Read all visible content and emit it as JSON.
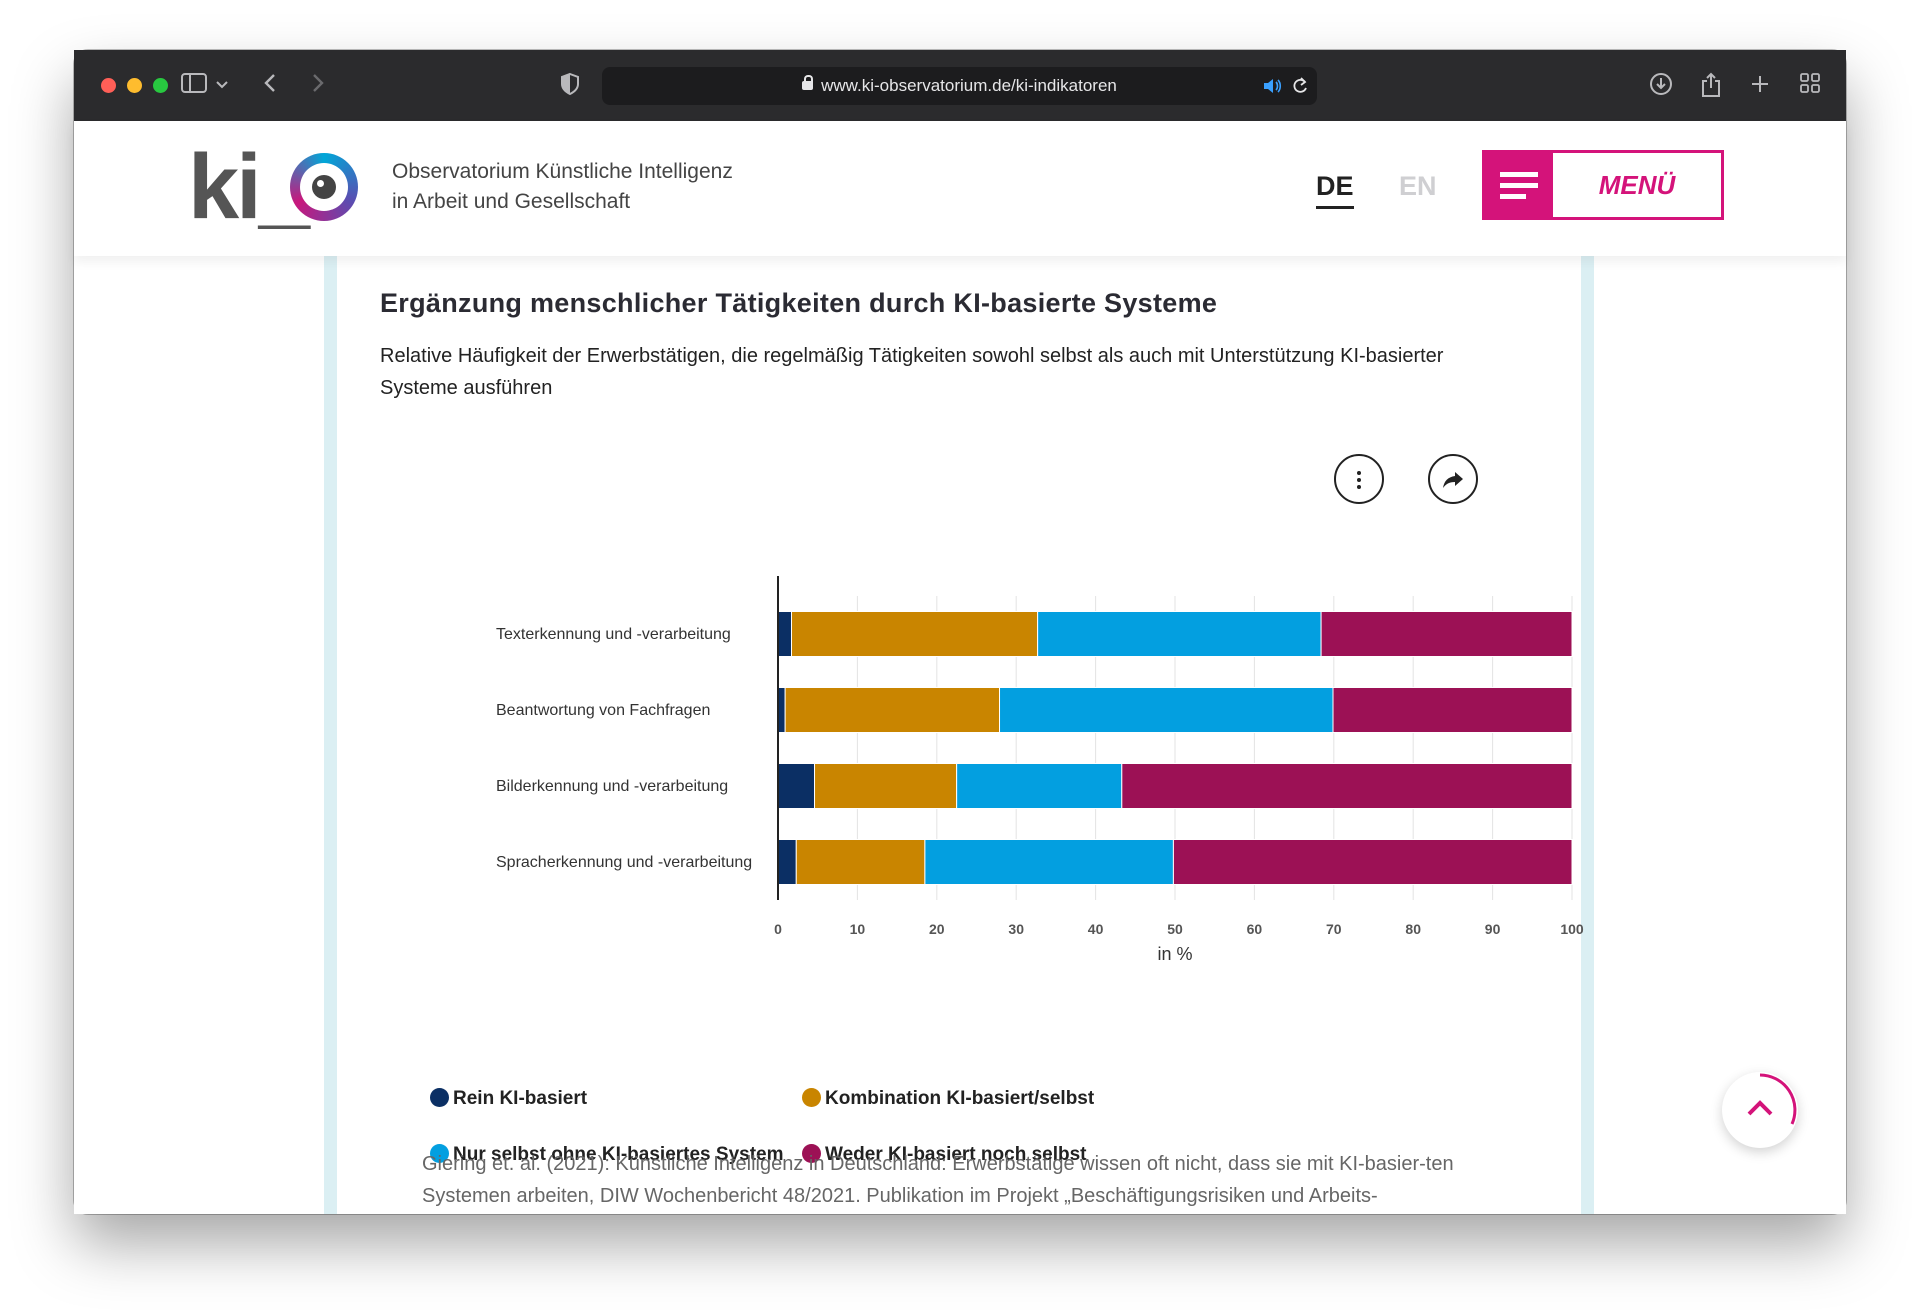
{
  "browser": {
    "url": "www.ki-observatorium.de/ki-indikatoren"
  },
  "header": {
    "logo_text": "ki_",
    "tagline_line1": "Observatorium Künstliche Intelligenz",
    "tagline_line2": "in Arbeit und Gesellschaft",
    "lang_de": "DE",
    "lang_en": "EN",
    "menu_label": "MENÜ"
  },
  "main": {
    "title": "Ergänzung menschlicher Tätigkeiten durch KI-basierte Systeme",
    "subtitle": "Relative Häufigkeit der Erwerbstätigen, die regelmäßig Tätigkeiten sowohl selbst als auch mit Unterstützung KI-basierter Systeme ausführen",
    "citation": "Giering et. al. (2021): Künstliche Intelligenz in Deutschland: Erwerbstätige wissen oft nicht, dass sie mit KI-basier-ten Systemen arbeiten, DIW Wochenbericht 48/2021. Publikation im Projekt „Beschäftigungsrisiken und Arbeits-"
  },
  "chart_data": {
    "type": "bar",
    "orientation": "horizontal",
    "stacked": true,
    "categories": [
      "Texterkennung und -verarbeitung",
      "Beantwortung von Fachfragen",
      "Bilderkennung und -verarbeitung",
      "Spracherkennung und -verarbeitung"
    ],
    "series": [
      {
        "name": "Rein KI-basiert",
        "color": "#0b2f64",
        "values": [
          1.7,
          0.9,
          4.6,
          2.3
        ]
      },
      {
        "name": "Kombination KI-basiert/selbst",
        "color": "#c98500",
        "values": [
          31.0,
          27.0,
          17.9,
          16.2
        ]
      },
      {
        "name": "Nur selbst ohne KI-basiertes System",
        "color": "#039fe0",
        "values": [
          35.7,
          42.0,
          20.8,
          31.3
        ]
      },
      {
        "name": "Weder KI-basiert noch selbst",
        "color": "#9c1155",
        "values": [
          31.6,
          30.1,
          56.7,
          50.2
        ]
      }
    ],
    "xlabel": "in %",
    "xlim": [
      0,
      100
    ],
    "xticks": [
      "0",
      "10",
      "20",
      "30",
      "40",
      "50",
      "60",
      "70",
      "80",
      "90",
      "100"
    ],
    "grid": "vertical",
    "legend_position": "bottom"
  }
}
